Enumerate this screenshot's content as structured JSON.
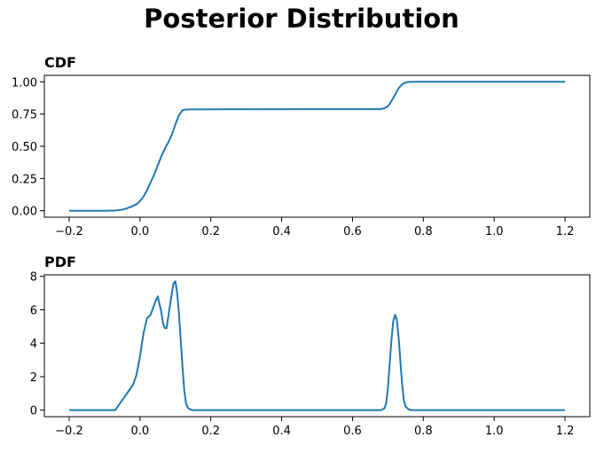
{
  "title": "Posterior Distribution",
  "chart_data": [
    {
      "type": "line",
      "title": "CDF",
      "x": [
        -0.2,
        -0.1,
        -0.07,
        -0.05,
        -0.03,
        -0.01,
        0.0,
        0.01,
        0.02,
        0.03,
        0.04,
        0.05,
        0.06,
        0.07,
        0.08,
        0.09,
        0.1,
        0.11,
        0.12,
        0.13,
        0.15,
        0.3,
        0.5,
        0.65,
        0.68,
        0.69,
        0.7,
        0.71,
        0.72,
        0.73,
        0.74,
        0.75,
        0.76,
        0.78,
        1.2
      ],
      "series": [
        {
          "name": "CDF",
          "color": "#1f77b4",
          "values": [
            0.0,
            0.0,
            0.002,
            0.008,
            0.025,
            0.05,
            0.075,
            0.11,
            0.16,
            0.22,
            0.28,
            0.35,
            0.42,
            0.48,
            0.53,
            0.59,
            0.67,
            0.74,
            0.78,
            0.785,
            0.786,
            0.787,
            0.788,
            0.788,
            0.789,
            0.795,
            0.81,
            0.85,
            0.9,
            0.95,
            0.98,
            0.995,
            0.999,
            1.0,
            1.0
          ]
        }
      ],
      "xlim": [
        -0.27,
        1.27
      ],
      "ylim": [
        -0.05,
        1.05
      ],
      "xticks": [
        {
          "value": -0.2,
          "label": "−0.2"
        },
        {
          "value": 0,
          "label": "0.0"
        },
        0.2,
        0.4,
        0.6,
        0.8,
        {
          "value": 1,
          "label": "1.0"
        },
        1.2
      ],
      "yticks": [
        {
          "value": 0,
          "label": "0.00"
        },
        0.25,
        {
          "value": 0.5,
          "label": "0.50"
        },
        0.75,
        {
          "value": 1,
          "label": "1.00"
        }
      ],
      "grid": false
    },
    {
      "type": "line",
      "title": "PDF",
      "x": [
        -0.2,
        -0.07,
        -0.06,
        -0.05,
        -0.04,
        -0.03,
        -0.02,
        -0.01,
        0.0,
        0.01,
        0.02,
        0.03,
        0.04,
        0.05,
        0.06,
        0.065,
        0.07,
        0.075,
        0.08,
        0.09,
        0.095,
        0.1,
        0.105,
        0.11,
        0.115,
        0.12,
        0.125,
        0.13,
        0.135,
        0.14,
        0.15,
        0.68,
        0.69,
        0.695,
        0.7,
        0.705,
        0.71,
        0.715,
        0.72,
        0.725,
        0.73,
        0.735,
        0.74,
        0.745,
        0.75,
        0.76,
        0.77,
        1.2
      ],
      "series": [
        {
          "name": "PDF",
          "color": "#1f77b4",
          "values": [
            0.0,
            0.0,
            0.3,
            0.6,
            0.9,
            1.2,
            1.5,
            2.1,
            3.2,
            4.6,
            5.5,
            5.7,
            6.3,
            6.8,
            5.9,
            5.2,
            4.9,
            4.9,
            5.6,
            7.0,
            7.6,
            7.7,
            7.0,
            5.8,
            4.2,
            2.6,
            1.2,
            0.4,
            0.15,
            0.05,
            0.0,
            0.0,
            0.1,
            0.4,
            1.3,
            2.8,
            4.2,
            5.3,
            5.7,
            5.4,
            4.4,
            3.0,
            1.6,
            0.6,
            0.2,
            0.03,
            0.0,
            0.0
          ]
        }
      ],
      "xlim": [
        -0.27,
        1.27
      ],
      "ylim": [
        -0.39,
        8.09
      ],
      "xticks": [
        {
          "value": -0.2,
          "label": "−0.2"
        },
        {
          "value": 0,
          "label": "0.0"
        },
        0.2,
        0.4,
        0.6,
        0.8,
        {
          "value": 1,
          "label": "1.0"
        },
        1.2
      ],
      "yticks": [
        0,
        2,
        4,
        6,
        8
      ],
      "grid": false
    }
  ]
}
